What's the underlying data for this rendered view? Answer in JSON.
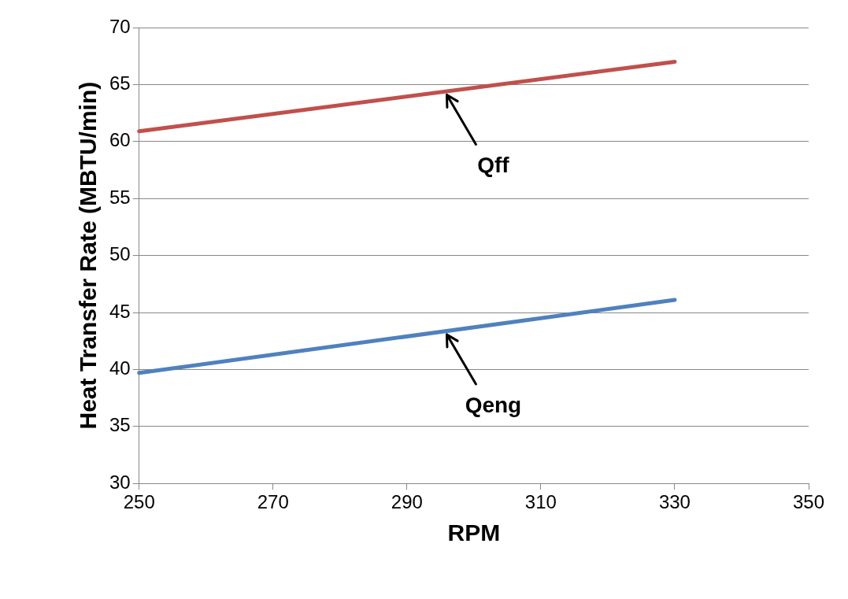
{
  "chart_data": {
    "type": "line",
    "xlabel": "RPM",
    "ylabel": "Heat Transfer Rate (MBTU/min)",
    "x": [
      250,
      330
    ],
    "series": [
      {
        "name": "Qff",
        "color": "#c0504d",
        "values": [
          60.9,
          67.0
        ]
      },
      {
        "name": "Qeng",
        "color": "#4f81bd",
        "values": [
          39.7,
          46.1
        ]
      }
    ],
    "xlim": [
      250,
      350
    ],
    "xticks": [
      250,
      270,
      290,
      310,
      330,
      350
    ],
    "ylim": [
      30,
      70
    ],
    "yticks": [
      30,
      35,
      40,
      45,
      50,
      55,
      60,
      65,
      70
    ],
    "grid": "y",
    "legend": false,
    "marker": "none",
    "line_style": "solid"
  }
}
